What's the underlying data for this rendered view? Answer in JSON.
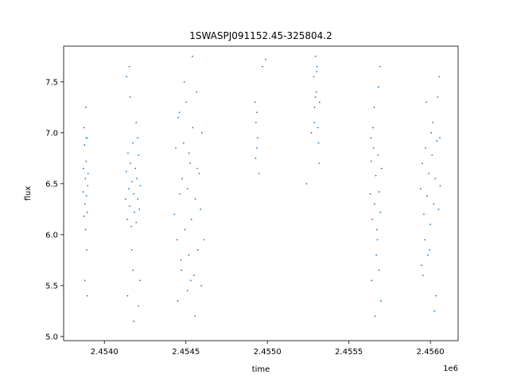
{
  "chart_data": {
    "type": "scatter",
    "title": "1SWASPJ091152.45-325804.2",
    "xlabel": "time",
    "ylabel": "flux",
    "x_offset_label": "1e6",
    "xlim": [
      2453750,
      2456170
    ],
    "ylim": [
      4.96,
      7.85
    ],
    "x_ticks": [
      2453950,
      2454200,
      2454450,
      2454700,
      2454950,
      2455200,
      2455450,
      2455700,
      2455950
    ],
    "x_tick_labels": [
      "2.4540",
      "2.4545",
      "2.4550",
      "2.4555",
      "2.4560"
    ],
    "x_tick_label_values": [
      2454000,
      2454500,
      2455000,
      2455500,
      2456000
    ],
    "y_ticks": [
      5.0,
      5.5,
      6.0,
      6.5,
      7.0,
      7.5
    ],
    "y_tick_labels": [
      "5.0",
      "5.5",
      "6.0",
      "6.5",
      "7.0",
      "7.5"
    ],
    "marker_color": "#1f77b4",
    "grid": false,
    "series": [
      {
        "name": "",
        "x": [
          2453870,
          2453872,
          2453875,
          2453878,
          2453880,
          2453883,
          2453885,
          2453888,
          2453890,
          2453893,
          2453895,
          2453898,
          2453900,
          2453880,
          2453886,
          2453892,
          2453876,
          2453895,
          2453889,
          2454130,
          2454135,
          2454140,
          2454145,
          2454150,
          2454155,
          2454160,
          2454165,
          2454170,
          2454175,
          2454180,
          2454185,
          2454190,
          2454195,
          2454200,
          2454205,
          2454210,
          2454215,
          2454220,
          2454142,
          2454158,
          2454176,
          2454195,
          2454210,
          2454136,
          2454168,
          2454205,
          2454180,
          2454153,
          2454218,
          2454430,
          2454438,
          2454446,
          2454454,
          2454462,
          2454470,
          2454478,
          2454486,
          2454494,
          2454502,
          2454510,
          2454518,
          2454526,
          2454534,
          2454542,
          2454550,
          2454558,
          2454566,
          2454574,
          2454582,
          2454590,
          2454598,
          2454450,
          2454490,
          2454530,
          2454570,
          2454610,
          2454460,
          2454510,
          2454540,
          2454555,
          2454472,
          2454520,
          2454595,
          2454925,
          2454930,
          2454935,
          2454940,
          2454928,
          2454936,
          2454948,
          2454970,
          2454990,
          2455240,
          2455270,
          2455285,
          2455290,
          2455295,
          2455300,
          2455305,
          2455310,
          2455315,
          2455320,
          2455288,
          2455302,
          2455318,
          2455295,
          2455630,
          2455637,
          2455644,
          2455651,
          2455658,
          2455665,
          2455672,
          2455679,
          2455686,
          2455693,
          2455700,
          2455640,
          2455655,
          2455668,
          2455682,
          2455696,
          2455648,
          2455675,
          2455690,
          2455660,
          2455635,
          2455685,
          2455940,
          2455950,
          2455960,
          2455970,
          2455980,
          2455990,
          2456000,
          2456010,
          2456020,
          2456030,
          2456040,
          2456050,
          2456060,
          2455955,
          2455975,
          2455995,
          2456015,
          2456035,
          2456055,
          2455965,
          2456005,
          2456025,
          2456045,
          2455945,
          2456058,
          2455985
        ],
        "y": [
          6.42,
          6.65,
          6.18,
          6.88,
          6.3,
          6.55,
          6.05,
          6.72,
          6.38,
          6.95,
          6.22,
          6.48,
          6.6,
          5.55,
          7.25,
          5.85,
          7.05,
          5.4,
          6.95,
          6.35,
          6.62,
          6.15,
          6.8,
          6.45,
          6.28,
          6.7,
          6.08,
          6.52,
          6.9,
          6.4,
          6.22,
          6.65,
          6.12,
          6.55,
          6.35,
          6.78,
          6.25,
          6.48,
          5.4,
          7.35,
          5.65,
          7.1,
          5.3,
          7.55,
          5.85,
          6.95,
          5.15,
          7.65,
          5.55,
          6.2,
          6.85,
          5.95,
          7.15,
          6.4,
          5.75,
          6.55,
          6.9,
          6.05,
          7.3,
          6.45,
          5.8,
          6.7,
          6.15,
          7.05,
          5.6,
          6.35,
          7.4,
          5.85,
          6.6,
          6.25,
          7.0,
          5.35,
          7.5,
          5.55,
          6.65,
          5.95,
          7.2,
          5.45,
          7.75,
          5.2,
          5.65,
          6.8,
          5.5,
          7.3,
          7.1,
          6.85,
          6.95,
          6.75,
          7.2,
          6.6,
          7.65,
          7.72,
          6.5,
          7.0,
          7.55,
          7.25,
          7.75,
          7.4,
          7.65,
          7.05,
          6.9,
          7.3,
          7.1,
          7.6,
          6.7,
          7.35,
          6.4,
          6.72,
          6.15,
          6.85,
          6.3,
          6.58,
          6.05,
          6.78,
          6.42,
          6.22,
          6.65,
          5.55,
          7.25,
          5.8,
          7.45,
          5.35,
          7.05,
          5.95,
          7.65,
          5.2,
          6.95,
          5.65,
          6.45,
          6.7,
          6.2,
          6.85,
          6.38,
          6.6,
          6.1,
          6.78,
          6.3,
          6.55,
          6.92,
          6.25,
          6.48,
          5.6,
          7.3,
          5.85,
          7.1,
          5.4,
          7.55,
          5.95,
          7.0,
          5.25,
          7.35,
          5.7,
          6.95,
          5.8
        ]
      }
    ]
  }
}
